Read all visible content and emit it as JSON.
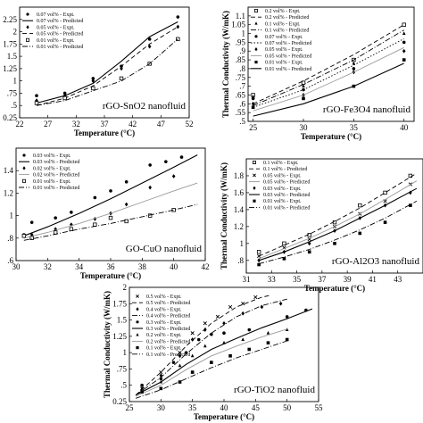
{
  "chart_data": [
    {
      "type": "scatter",
      "title": "rGO-SnO2 nanofluid",
      "xlabel": "Temperature (°C)",
      "ylabel": "",
      "xlim": [
        22,
        52
      ],
      "ylim": [
        0.25,
        2.5
      ],
      "xticks": [
        "22",
        "27",
        "32",
        "37",
        "42",
        "47",
        "52"
      ],
      "yticks": [
        "0.25",
        ".5",
        ".75",
        "1",
        "1.25",
        "1.5",
        "1.75",
        "2",
        "2.25"
      ],
      "legend_position": "top-left",
      "series": [
        {
          "name": "0.07 vol% - Expt.",
          "kind": "points",
          "marker": "circle",
          "x": [
            25,
            30,
            35,
            40,
            45,
            50
          ],
          "y": [
            0.7,
            0.75,
            1.05,
            1.3,
            1.85,
            2.3
          ]
        },
        {
          "name": "0.07 vol% - Predicted",
          "kind": "line",
          "dash": "solid",
          "x": [
            25,
            30,
            35,
            40,
            45,
            50
          ],
          "y": [
            0.55,
            0.7,
            0.95,
            1.4,
            1.9,
            2.2
          ]
        },
        {
          "name": "0.05 vol% - Expt.",
          "kind": "points",
          "marker": "diamond",
          "x": [
            25,
            30,
            35,
            40,
            45,
            50
          ],
          "y": [
            0.6,
            0.7,
            1.0,
            1.25,
            1.7,
            2.1
          ]
        },
        {
          "name": "0.05 vol% - Predicted",
          "kind": "line",
          "dash": "dash",
          "x": [
            25,
            30,
            35,
            40,
            45,
            50
          ],
          "y": [
            0.5,
            0.65,
            0.9,
            1.3,
            1.75,
            2.1
          ]
        },
        {
          "name": "0.01 vol% - Expt.",
          "kind": "points",
          "marker": "square",
          "x": [
            25,
            30,
            35,
            40,
            45,
            50
          ],
          "y": [
            0.55,
            0.65,
            0.85,
            1.05,
            1.35,
            1.85
          ]
        },
        {
          "name": "0.01 vol% - Predicted",
          "kind": "line",
          "dash": "dashdot",
          "x": [
            25,
            30,
            35,
            40,
            45,
            50
          ],
          "y": [
            0.5,
            0.6,
            0.8,
            1.0,
            1.35,
            1.85
          ]
        }
      ]
    },
    {
      "type": "scatter",
      "title": "rGO-Fe3O4 nanofluid",
      "xlabel": "Temperature (°C)",
      "ylabel": "Thermal Conductivity (W/mK)",
      "xlim": [
        24.5,
        41
      ],
      "ylim": [
        0.5,
        1.15
      ],
      "xticks": [
        "25",
        "30",
        "35",
        "40"
      ],
      "yticks": [
        ".5",
        ".55",
        ".6",
        ".65",
        ".7",
        ".75",
        ".8",
        ".85",
        ".9",
        ".95",
        "1",
        "1.05",
        "1.1"
      ],
      "legend_position": "top-left",
      "series": [
        {
          "name": "0.2 vol% - Expt.",
          "kind": "points",
          "marker": "square",
          "x": [
            25,
            30,
            35,
            40
          ],
          "y": [
            0.65,
            0.72,
            0.85,
            1.05
          ]
        },
        {
          "name": "0.2 vol% - Predicted",
          "kind": "line",
          "dash": "dash",
          "x": [
            25,
            30,
            35,
            40
          ],
          "y": [
            0.6,
            0.73,
            0.88,
            1.05
          ]
        },
        {
          "name": "0.1 vol% - Expt.",
          "kind": "points",
          "marker": "triangle",
          "x": [
            25,
            30,
            35,
            40
          ],
          "y": [
            0.64,
            0.7,
            0.83,
            1.0
          ]
        },
        {
          "name": "0.1 vol% - Predicted",
          "kind": "line",
          "dash": "dashdot",
          "x": [
            25,
            30,
            35,
            40
          ],
          "y": [
            0.59,
            0.71,
            0.85,
            1.02
          ]
        },
        {
          "name": "0.07 vol% - Expt.",
          "kind": "points",
          "marker": "circle",
          "x": [
            25,
            30,
            35,
            40
          ],
          "y": [
            0.63,
            0.68,
            0.8,
            0.95
          ]
        },
        {
          "name": "0.07 vol% - Predicted",
          "kind": "line",
          "dash": "dot",
          "x": [
            25,
            30,
            35,
            40
          ],
          "y": [
            0.58,
            0.68,
            0.82,
            0.97
          ]
        },
        {
          "name": "0.05 vol% - Expt.",
          "kind": "points",
          "marker": "diamond",
          "x": [
            25,
            30,
            35,
            40
          ],
          "y": [
            0.6,
            0.65,
            0.78,
            0.9
          ]
        },
        {
          "name": "0.05 vol% - Predicted",
          "kind": "line",
          "dash": "light",
          "x": [
            25,
            30,
            35,
            40
          ],
          "y": [
            0.56,
            0.65,
            0.78,
            0.92
          ]
        },
        {
          "name": "0.01 vol% - Expt.",
          "kind": "points",
          "marker": "square-filled",
          "x": [
            25,
            30,
            35,
            40
          ],
          "y": [
            0.58,
            0.63,
            0.7,
            0.85
          ]
        },
        {
          "name": "0.01 vol% - Predicted",
          "kind": "line",
          "dash": "solid",
          "x": [
            25,
            30,
            35,
            40
          ],
          "y": [
            0.53,
            0.6,
            0.7,
            0.83
          ]
        }
      ]
    },
    {
      "type": "scatter",
      "title": "GO-CuO nanofluid",
      "xlabel": "Temperature (°C)",
      "ylabel": "",
      "xlim": [
        30,
        42
      ],
      "ylim": [
        0.6,
        1.6
      ],
      "xticks": [
        "30",
        "32",
        "34",
        "36",
        "38",
        "40",
        "42"
      ],
      "yticks": [
        ".6",
        ".8",
        "1",
        "1.2",
        "1.4"
      ],
      "legend_position": "top-left",
      "series": [
        {
          "name": "0.03 vol% - Expt.",
          "kind": "points",
          "marker": "circle",
          "x": [
            30.5,
            31,
            32.5,
            33.5,
            35,
            36,
            37,
            38.5,
            39.5,
            40.5
          ],
          "y": [
            0.83,
            0.94,
            0.98,
            1.03,
            1.16,
            1.22,
            1.3,
            1.45,
            1.48,
            1.52
          ]
        },
        {
          "name": "0.03 vol% - Predicted",
          "kind": "line",
          "dash": "solid",
          "x": [
            30.5,
            32,
            34,
            36,
            38,
            40,
            41.5
          ],
          "y": [
            0.82,
            0.9,
            1.02,
            1.15,
            1.29,
            1.43,
            1.54
          ]
        },
        {
          "name": "0.02 vol% - Expt.",
          "kind": "points",
          "marker": "diamond",
          "x": [
            30.5,
            31,
            32.5,
            33.5,
            35,
            36,
            37,
            38.5,
            40
          ],
          "y": [
            0.82,
            0.83,
            0.88,
            0.92,
            0.97,
            1.02,
            1.1,
            1.25,
            1.35
          ]
        },
        {
          "name": "0.02 vol% - Predicted",
          "kind": "line",
          "dash": "light",
          "x": [
            30.5,
            32,
            34,
            36,
            38,
            40,
            41.5
          ],
          "y": [
            0.8,
            0.85,
            0.93,
            1.02,
            1.12,
            1.22,
            1.29
          ]
        },
        {
          "name": "0.01 vol% - Expt.",
          "kind": "points",
          "marker": "square",
          "x": [
            30.5,
            31,
            32.5,
            33.5,
            35,
            36,
            37,
            38.5,
            40
          ],
          "y": [
            0.82,
            0.8,
            0.85,
            0.88,
            0.92,
            0.98,
            0.95,
            1.0,
            1.05
          ]
        },
        {
          "name": "0.01 vol% - Predicted",
          "kind": "line",
          "dash": "dashdot",
          "x": [
            30.5,
            32,
            34,
            36,
            38,
            40,
            41.5
          ],
          "y": [
            0.78,
            0.82,
            0.88,
            0.93,
            0.99,
            1.05,
            1.1
          ]
        }
      ]
    },
    {
      "type": "scatter",
      "title": "rGO-Al2O3 nanofluid",
      "xlabel": "Temperature (°C)",
      "ylabel": "Thermal Conductivity (W/mK)",
      "xlim": [
        31,
        45
      ],
      "ylim": [
        0.65,
        2.0
      ],
      "xticks": [
        "31",
        "33",
        "35",
        "37",
        "39",
        "41",
        "43"
      ],
      "yticks": [
        ".8",
        "1",
        "1.2",
        "1.4",
        "1.6",
        "1.8"
      ],
      "legend_position": "top-left",
      "series": [
        {
          "name": "0.1 vol% - Expt.",
          "kind": "points",
          "marker": "square",
          "x": [
            32,
            34,
            36,
            38,
            40,
            42,
            44
          ],
          "y": [
            0.9,
            1.0,
            1.1,
            1.25,
            1.45,
            1.6,
            1.8
          ]
        },
        {
          "name": "0.1 vol% - Predicted",
          "kind": "line",
          "dash": "dash",
          "x": [
            32,
            34,
            36,
            38,
            40,
            42,
            44.5
          ],
          "y": [
            0.85,
            0.98,
            1.11,
            1.26,
            1.42,
            1.6,
            1.83
          ]
        },
        {
          "name": "0.05 vol% - Expt.",
          "kind": "points",
          "marker": "x",
          "x": [
            32,
            34,
            36,
            38,
            40,
            42,
            44
          ],
          "y": [
            0.85,
            0.95,
            1.05,
            1.2,
            1.35,
            1.5,
            1.7
          ]
        },
        {
          "name": "0.05 vol% - Predicted",
          "kind": "line",
          "dash": "light",
          "x": [
            32,
            34,
            36,
            38,
            40,
            42,
            44.5
          ],
          "y": [
            0.82,
            0.94,
            1.06,
            1.2,
            1.35,
            1.52,
            1.74
          ]
        },
        {
          "name": "0.03 vol% - Expt.",
          "kind": "points",
          "marker": "diamond",
          "x": [
            32,
            34,
            36,
            38,
            40,
            42,
            44
          ],
          "y": [
            0.8,
            0.9,
            1.0,
            1.15,
            1.3,
            1.45,
            1.6
          ]
        },
        {
          "name": "0.03 vol% - Predicted",
          "kind": "line",
          "dash": "solid",
          "x": [
            32,
            34,
            36,
            38,
            40,
            42,
            44.5
          ],
          "y": [
            0.8,
            0.9,
            1.02,
            1.15,
            1.3,
            1.45,
            1.65
          ]
        },
        {
          "name": "0.01 vol% - Expt.",
          "kind": "points",
          "marker": "square-filled",
          "x": [
            32,
            34,
            36,
            38,
            40,
            42,
            44
          ],
          "y": [
            0.75,
            0.82,
            0.9,
            1.0,
            1.12,
            1.25,
            1.45
          ]
        },
        {
          "name": "0.01 vol% - Predicted",
          "kind": "line",
          "dash": "dashdot",
          "x": [
            32,
            34,
            36,
            38,
            40,
            42,
            44.5
          ],
          "y": [
            0.76,
            0.84,
            0.93,
            1.04,
            1.16,
            1.3,
            1.5
          ]
        }
      ]
    },
    {
      "type": "scatter",
      "title": "rGO-TiO2 nanofluid",
      "xlabel": "Temperature (°C)",
      "ylabel": "Thermal Conductivity (W/mK)",
      "xlim": [
        25,
        55
      ],
      "ylim": [
        0.25,
        2.0
      ],
      "xticks": [
        "25",
        "30",
        "35",
        "40",
        "45",
        "50",
        "55"
      ],
      "yticks": [
        "0.25",
        ".5",
        ".75",
        "1",
        "1.25",
        "1.5",
        "1.75",
        "2"
      ],
      "legend_position": "top-left",
      "series": [
        {
          "name": "0.5 vol% - Expt.",
          "kind": "points",
          "marker": "x",
          "x": [
            27,
            30,
            33,
            35,
            37,
            39,
            41,
            43,
            45
          ],
          "y": [
            0.45,
            0.7,
            1.0,
            1.3,
            1.45,
            1.55,
            1.7,
            1.75,
            1.85
          ]
        },
        {
          "name": "0.5 vol% - Predicted",
          "kind": "line",
          "dash": "dash",
          "x": [
            26,
            30,
            34,
            38,
            42,
            46,
            47.5
          ],
          "y": [
            0.35,
            0.7,
            1.1,
            1.45,
            1.7,
            1.85,
            1.88
          ]
        },
        {
          "name": "0.4 vol% - Expt.",
          "kind": "points",
          "marker": "diamond",
          "x": [
            27,
            30,
            33,
            35,
            37,
            40,
            43,
            46,
            49
          ],
          "y": [
            0.4,
            0.65,
            0.95,
            1.2,
            1.35,
            1.45,
            1.6,
            1.7,
            1.75
          ]
        },
        {
          "name": "0.4 vol% - Predicted",
          "kind": "line",
          "dash": "dashdot",
          "x": [
            26,
            30,
            34,
            38,
            42,
            46,
            50
          ],
          "y": [
            0.35,
            0.62,
            0.98,
            1.3,
            1.55,
            1.72,
            1.82
          ]
        },
        {
          "name": "0.3 vol% - Expt.",
          "kind": "points",
          "marker": "circle",
          "x": [
            27,
            30,
            32,
            34,
            36,
            38,
            40,
            44,
            50,
            53
          ],
          "y": [
            0.5,
            0.6,
            0.85,
            1.0,
            1.2,
            1.28,
            1.3,
            1.35,
            1.55,
            1.65
          ]
        },
        {
          "name": "0.3 vol% - Predicted",
          "kind": "line",
          "dash": "solid",
          "x": [
            26,
            30,
            34,
            38,
            42,
            46,
            50,
            54
          ],
          "y": [
            0.35,
            0.55,
            0.82,
            1.05,
            1.22,
            1.38,
            1.52,
            1.67
          ]
        },
        {
          "name": "0.2 vol% - Expt.",
          "kind": "points",
          "marker": "triangle",
          "x": [
            27,
            30,
            33,
            35,
            37,
            40,
            43,
            47,
            50
          ],
          "y": [
            0.45,
            0.55,
            0.8,
            0.95,
            1.1,
            1.15,
            1.2,
            1.3,
            1.35
          ]
        },
        {
          "name": "0.2 vol% - Predicted",
          "kind": "line",
          "dash": "light",
          "x": [
            26,
            30,
            34,
            38,
            42,
            46,
            50
          ],
          "y": [
            0.33,
            0.5,
            0.74,
            0.95,
            1.1,
            1.24,
            1.36
          ]
        },
        {
          "name": "0.1 vol% - Expt.",
          "kind": "points",
          "marker": "square-filled",
          "x": [
            27,
            30,
            33,
            35,
            38,
            41,
            44,
            47,
            50
          ],
          "y": [
            0.4,
            0.45,
            0.55,
            0.7,
            0.85,
            0.95,
            1.05,
            1.15,
            1.2
          ]
        },
        {
          "name": "0.1 vol% - Predicted",
          "kind": "line",
          "dash": "dashdot",
          "x": [
            26,
            30,
            34,
            38,
            42,
            46,
            50
          ],
          "y": [
            0.3,
            0.43,
            0.6,
            0.77,
            0.92,
            1.05,
            1.18
          ]
        }
      ]
    }
  ]
}
